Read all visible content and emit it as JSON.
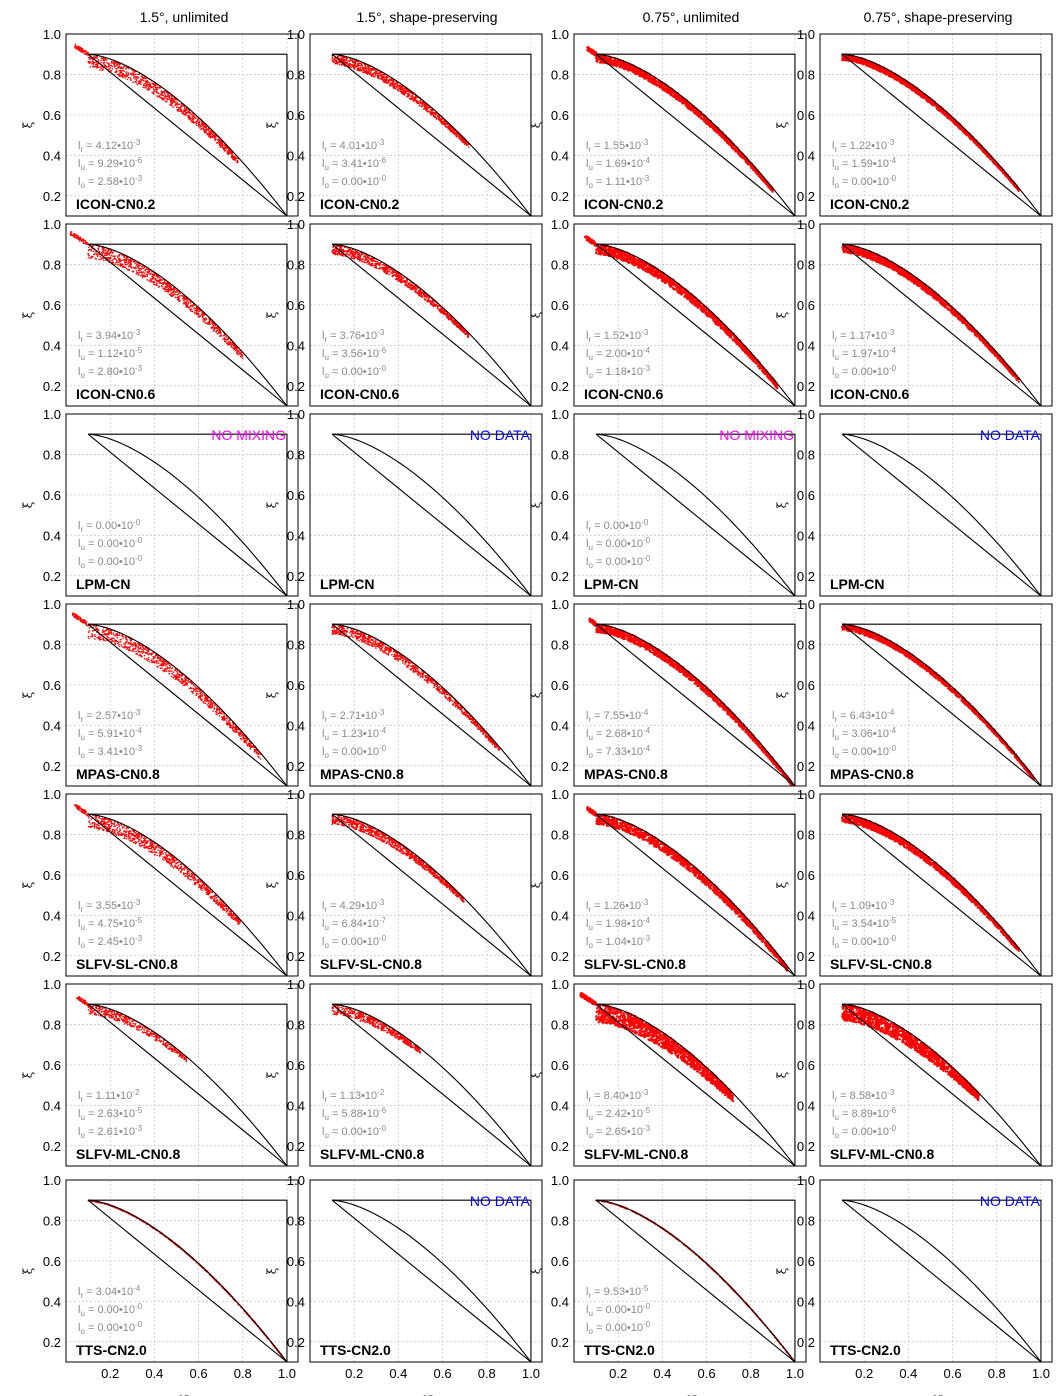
{
  "columns": [
    "1.5°, unlimited",
    "1.5°, shape-preserving",
    "0.75°, unlimited",
    "0.75°, shape-preserving"
  ],
  "rows": [
    "ICON-CN0.2",
    "ICON-CN0.6",
    "LPM-CN",
    "MPAS-CN0.8",
    "SLFV-SL-CN0.8",
    "SLFV-ML-CN0.8",
    "TTS-CN2.0"
  ],
  "stat_labels": {
    "r": "l",
    "r_sub": "r",
    "u": "l",
    "u_sub": "u",
    "o": "l",
    "o_sub": "o",
    "sep": "•10"
  },
  "notes": {
    "no_mixing": "NO MIXING",
    "no_data": "NO DATA"
  },
  "colors": {
    "points": "#ff0000",
    "frame": "#000000",
    "grid": "#c8c8c8",
    "stats_text": "#8a8a8a",
    "no_mixing": "#ff00ff",
    "no_data": "#0000ff"
  },
  "chart_data": {
    "type": "scatter",
    "xlabel": "χ",
    "ylabel": "ξ",
    "xlim": [
      0.0,
      1.05
    ],
    "ylim": [
      0.1,
      1.0
    ],
    "xticks": [
      "0.2",
      "0.4",
      "0.6",
      "0.8",
      "1.0"
    ],
    "yticks": [
      "0.2",
      "0.4",
      "0.6",
      "0.8",
      "1.0"
    ],
    "grid": true,
    "panels": [
      {
        "row": 0,
        "col": 0,
        "stats": [
          [
            "4.12",
            "-3"
          ],
          [
            "9.29",
            "-6"
          ],
          [
            "2.58",
            "-3"
          ]
        ],
        "note": null,
        "scatter": {
          "x0": 0.04,
          "x1": 0.78,
          "spread": 0.07,
          "style": "band"
        }
      },
      {
        "row": 0,
        "col": 1,
        "stats": [
          [
            "4.01",
            "-3"
          ],
          [
            "3.41",
            "-6"
          ],
          [
            "0.00",
            "-0"
          ]
        ],
        "note": null,
        "scatter": {
          "x0": 0.1,
          "x1": 0.72,
          "spread": 0.05,
          "style": "band"
        }
      },
      {
        "row": 0,
        "col": 2,
        "stats": [
          [
            "1.55",
            "-3"
          ],
          [
            "1.69",
            "-4"
          ],
          [
            "1.11",
            "-3"
          ]
        ],
        "note": null,
        "scatter": {
          "x0": 0.06,
          "x1": 0.9,
          "spread": 0.04,
          "style": "dense"
        }
      },
      {
        "row": 0,
        "col": 3,
        "stats": [
          [
            "1.22",
            "-3"
          ],
          [
            "1.59",
            "-4"
          ],
          [
            "0.00",
            "-0"
          ]
        ],
        "note": null,
        "scatter": {
          "x0": 0.1,
          "x1": 0.9,
          "spread": 0.03,
          "style": "dense"
        }
      },
      {
        "row": 1,
        "col": 0,
        "stats": [
          [
            "3.94",
            "-3"
          ],
          [
            "1.12",
            "-5"
          ],
          [
            "2.80",
            "-3"
          ]
        ],
        "note": null,
        "scatter": {
          "x0": 0.02,
          "x1": 0.8,
          "spread": 0.07,
          "style": "band"
        }
      },
      {
        "row": 1,
        "col": 1,
        "stats": [
          [
            "3.76",
            "-3"
          ],
          [
            "3.56",
            "-6"
          ],
          [
            "0.00",
            "-0"
          ]
        ],
        "note": null,
        "scatter": {
          "x0": 0.1,
          "x1": 0.72,
          "spread": 0.05,
          "style": "band"
        }
      },
      {
        "row": 1,
        "col": 2,
        "stats": [
          [
            "1.52",
            "-3"
          ],
          [
            "2.00",
            "-4"
          ],
          [
            "1.18",
            "-3"
          ]
        ],
        "note": null,
        "scatter": {
          "x0": 0.05,
          "x1": 0.92,
          "spread": 0.05,
          "style": "dense"
        }
      },
      {
        "row": 1,
        "col": 3,
        "stats": [
          [
            "1.17",
            "-3"
          ],
          [
            "1.97",
            "-4"
          ],
          [
            "0.00",
            "-0"
          ]
        ],
        "note": null,
        "scatter": {
          "x0": 0.1,
          "x1": 0.9,
          "spread": 0.04,
          "style": "dense"
        }
      },
      {
        "row": 2,
        "col": 0,
        "stats": [
          [
            "0.00",
            "-0"
          ],
          [
            "0.00",
            "-0"
          ],
          [
            "0.00",
            "-0"
          ]
        ],
        "note": "no_mixing",
        "scatter": null
      },
      {
        "row": 2,
        "col": 1,
        "stats": null,
        "note": "no_data",
        "scatter": null
      },
      {
        "row": 2,
        "col": 2,
        "stats": [
          [
            "0.00",
            "-0"
          ],
          [
            "0.00",
            "-0"
          ],
          [
            "0.00",
            "-0"
          ]
        ],
        "note": "no_mixing",
        "scatter": null
      },
      {
        "row": 2,
        "col": 3,
        "stats": null,
        "note": "no_data",
        "scatter": null
      },
      {
        "row": 3,
        "col": 0,
        "stats": [
          [
            "2.57",
            "-3"
          ],
          [
            "5.91",
            "-4"
          ],
          [
            "3.41",
            "-3"
          ]
        ],
        "note": null,
        "scatter": {
          "x0": 0.03,
          "x1": 0.88,
          "spread": 0.07,
          "style": "band"
        }
      },
      {
        "row": 3,
        "col": 1,
        "stats": [
          [
            "2.71",
            "-3"
          ],
          [
            "1.23",
            "-4"
          ],
          [
            "0.00",
            "-0"
          ]
        ],
        "note": null,
        "scatter": {
          "x0": 0.1,
          "x1": 0.86,
          "spread": 0.05,
          "style": "band"
        }
      },
      {
        "row": 3,
        "col": 2,
        "stats": [
          [
            "7.55",
            "-4"
          ],
          [
            "2.68",
            "-4"
          ],
          [
            "7.33",
            "-4"
          ]
        ],
        "note": null,
        "scatter": {
          "x0": 0.07,
          "x1": 0.99,
          "spread": 0.04,
          "style": "dense"
        }
      },
      {
        "row": 3,
        "col": 3,
        "stats": [
          [
            "6.43",
            "-4"
          ],
          [
            "3.06",
            "-4"
          ],
          [
            "0.00",
            "-0"
          ]
        ],
        "note": null,
        "scatter": {
          "x0": 0.1,
          "x1": 0.97,
          "spread": 0.03,
          "style": "dense"
        }
      },
      {
        "row": 4,
        "col": 0,
        "stats": [
          [
            "3.55",
            "-3"
          ],
          [
            "4.75",
            "-5"
          ],
          [
            "2.45",
            "-3"
          ]
        ],
        "note": null,
        "scatter": {
          "x0": 0.04,
          "x1": 0.79,
          "spread": 0.07,
          "style": "band"
        }
      },
      {
        "row": 4,
        "col": 1,
        "stats": [
          [
            "4.29",
            "-3"
          ],
          [
            "6.84",
            "-7"
          ],
          [
            "0.00",
            "-0"
          ]
        ],
        "note": null,
        "scatter": {
          "x0": 0.1,
          "x1": 0.7,
          "spread": 0.05,
          "style": "band"
        }
      },
      {
        "row": 4,
        "col": 2,
        "stats": [
          [
            "1.26",
            "-3"
          ],
          [
            "1.98",
            "-4"
          ],
          [
            "1.04",
            "-3"
          ]
        ],
        "note": null,
        "scatter": {
          "x0": 0.06,
          "x1": 0.97,
          "spread": 0.05,
          "style": "dense"
        }
      },
      {
        "row": 4,
        "col": 3,
        "stats": [
          [
            "1.09",
            "-3"
          ],
          [
            "3.54",
            "-5"
          ],
          [
            "0.00",
            "-0"
          ]
        ],
        "note": null,
        "scatter": {
          "x0": 0.1,
          "x1": 0.9,
          "spread": 0.04,
          "style": "dense"
        }
      },
      {
        "row": 5,
        "col": 0,
        "stats": [
          [
            "1.11",
            "-2"
          ],
          [
            "2.63",
            "-5"
          ],
          [
            "2.61",
            "-3"
          ]
        ],
        "note": null,
        "scatter": {
          "x0": 0.05,
          "x1": 0.55,
          "spread": 0.05,
          "style": "sparse"
        }
      },
      {
        "row": 5,
        "col": 1,
        "stats": [
          [
            "1.13",
            "-2"
          ],
          [
            "5.88",
            "-6"
          ],
          [
            "0.00",
            "-0"
          ]
        ],
        "note": null,
        "scatter": {
          "x0": 0.1,
          "x1": 0.5,
          "spread": 0.05,
          "style": "sparse"
        }
      },
      {
        "row": 5,
        "col": 2,
        "stats": [
          [
            "8.40",
            "-3"
          ],
          [
            "2.42",
            "-5"
          ],
          [
            "2.65",
            "-3"
          ]
        ],
        "note": null,
        "scatter": {
          "x0": 0.03,
          "x1": 0.72,
          "spread": 0.09,
          "style": "dense"
        }
      },
      {
        "row": 5,
        "col": 3,
        "stats": [
          [
            "8.58",
            "-3"
          ],
          [
            "8.89",
            "-6"
          ],
          [
            "0.00",
            "-0"
          ]
        ],
        "note": null,
        "scatter": {
          "x0": 0.1,
          "x1": 0.72,
          "spread": 0.08,
          "style": "dense"
        }
      },
      {
        "row": 6,
        "col": 0,
        "stats": [
          [
            "3.04",
            "-4"
          ],
          [
            "0.00",
            "-0"
          ],
          [
            "0.00",
            "-0"
          ]
        ],
        "note": null,
        "scatter": {
          "x0": 0.1,
          "x1": 1.0,
          "spread": 0.004,
          "style": "thin"
        }
      },
      {
        "row": 6,
        "col": 1,
        "stats": null,
        "note": "no_data",
        "scatter": null
      },
      {
        "row": 6,
        "col": 2,
        "stats": [
          [
            "9.53",
            "-5"
          ],
          [
            "0.00",
            "-0"
          ],
          [
            "0.00",
            "-0"
          ]
        ],
        "note": null,
        "scatter": {
          "x0": 0.1,
          "x1": 1.0,
          "spread": 0.003,
          "style": "thin"
        }
      },
      {
        "row": 6,
        "col": 3,
        "stats": null,
        "note": "no_data",
        "scatter": null
      }
    ]
  }
}
